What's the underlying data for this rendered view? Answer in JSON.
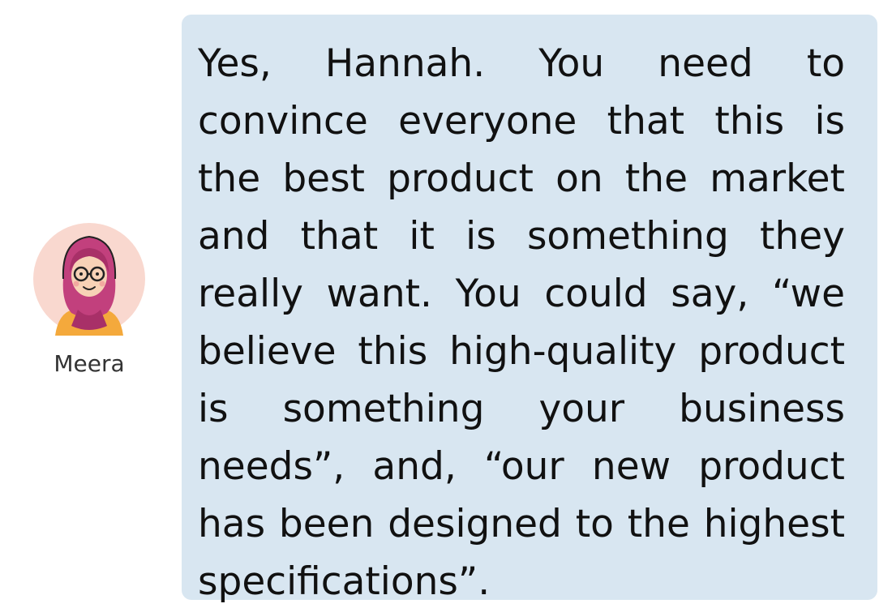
{
  "speaker": {
    "name": "Meera",
    "avatar_icon": "woman-in-hijab-with-glasses-avatar-icon",
    "avatar_bg": "#f9d8cf"
  },
  "bubble": {
    "background": "#d8e6f1",
    "text": "Yes, Hannah. You need to convince everyone that this is the best product on the market and that it is something they really want. You could say, “we believe this high-quality product is something your business needs”, and, “our new product has been designed to the highest specifications”."
  }
}
